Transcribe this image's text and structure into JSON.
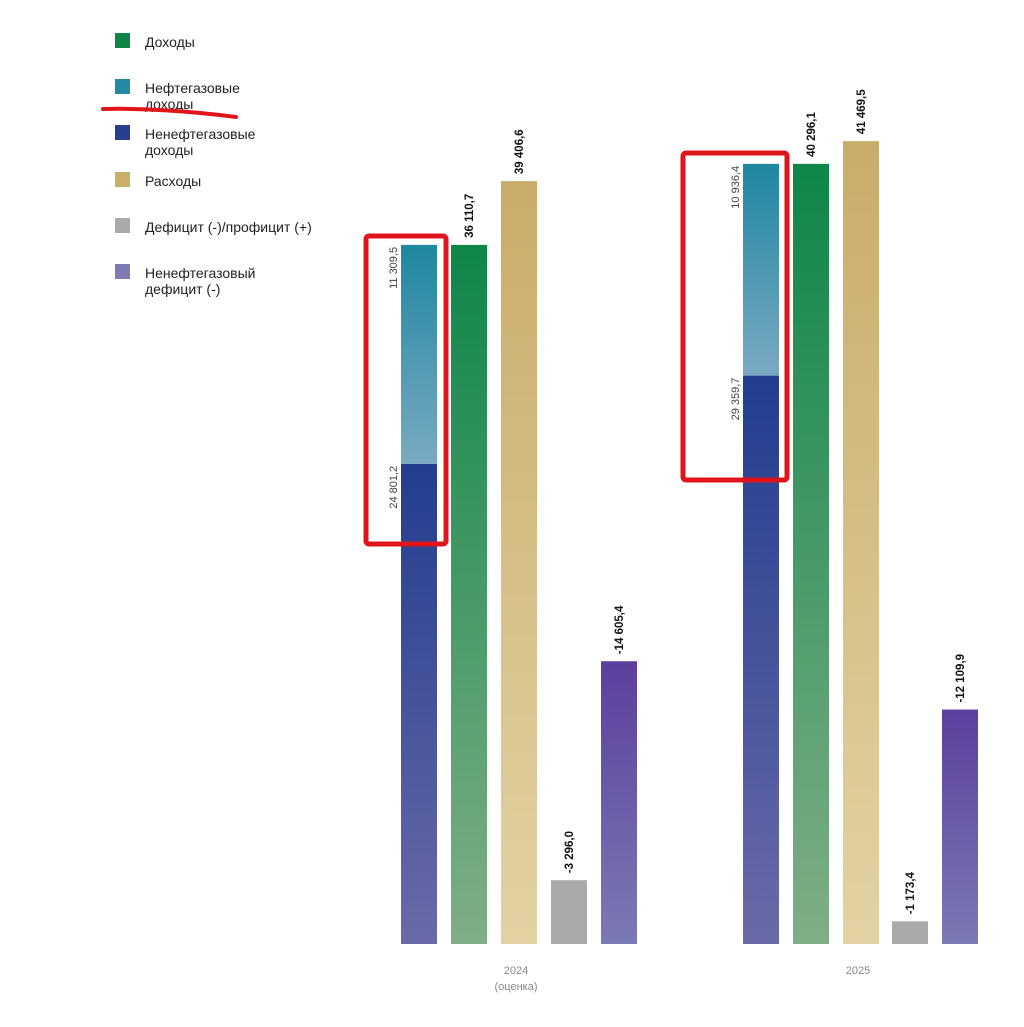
{
  "chart_data": {
    "type": "bar",
    "title": "",
    "xlabel": "",
    "ylabel": "",
    "grid": false,
    "legend_position": "top-left",
    "ylim": [
      -17000,
      42000
    ],
    "categories": [
      {
        "line1": "2024",
        "line2": "(оценка)"
      },
      {
        "line1": "2025",
        "line2": ""
      }
    ],
    "legend": [
      {
        "key": "revenue",
        "lines": [
          "Доходы"
        ],
        "color": "#0e8649"
      },
      {
        "key": "oilgas",
        "lines": [
          "Нефтегазовые",
          "доходы"
        ],
        "color": "#228aa3"
      },
      {
        "key": "nonoil",
        "lines": [
          "Ненефтегазовые",
          "доходы"
        ],
        "color": "#273f8f"
      },
      {
        "key": "expenses",
        "lines": [
          "Расходы"
        ],
        "color": "#c9af6a"
      },
      {
        "key": "balance",
        "lines": [
          "Дефицит (-)/профицит (+)"
        ],
        "color": "#aaaaaa"
      },
      {
        "key": "nonoil_deficit",
        "lines": [
          "Ненефтегазовый",
          "дефицит (-)"
        ],
        "color": "#7f79b4"
      }
    ],
    "stacked_revenue": [
      {
        "nonoil": 24801.2,
        "nonoil_label": "24 801,2",
        "oilgas": 11309.5,
        "oilgas_label": "11 309,5"
      },
      {
        "nonoil": 29359.7,
        "nonoil_label": "29 359,7",
        "oilgas": 10936.4,
        "oilgas_label": "10 936,4"
      }
    ],
    "series": [
      {
        "key": "revenue",
        "values": [
          36110.7,
          40296.1
        ],
        "labels": [
          "36 110,7",
          "40 296,1"
        ]
      },
      {
        "key": "expenses",
        "values": [
          39406.6,
          41469.5
        ],
        "labels": [
          "39 406,6",
          "41 469,5"
        ]
      },
      {
        "key": "balance",
        "values": [
          -3296.0,
          -1173.4
        ],
        "labels": [
          "-3 296,0",
          "-1 173,4"
        ]
      },
      {
        "key": "nonoil_deficit",
        "values": [
          -14605.4,
          -12109.9
        ],
        "labels": [
          "-14 605,4",
          "-12 109,9"
        ]
      }
    ],
    "colors": {
      "revenue_top": "#0e8649",
      "revenue_bottom": "#7fae86",
      "oilgas_top": "#1f87a1",
      "oilgas_bottom": "#7aa9c2",
      "nonoil_top": "#233d8f",
      "nonoil_bottom": "#6a6aa9",
      "expenses_top": "#c9ac69",
      "expenses_bottom": "#e2d2a3",
      "balance": "#aaaaaa",
      "deficit_top": "#5c3f9e",
      "deficit_bottom": "#7b7ab4",
      "annotation": "#e0151b"
    }
  }
}
